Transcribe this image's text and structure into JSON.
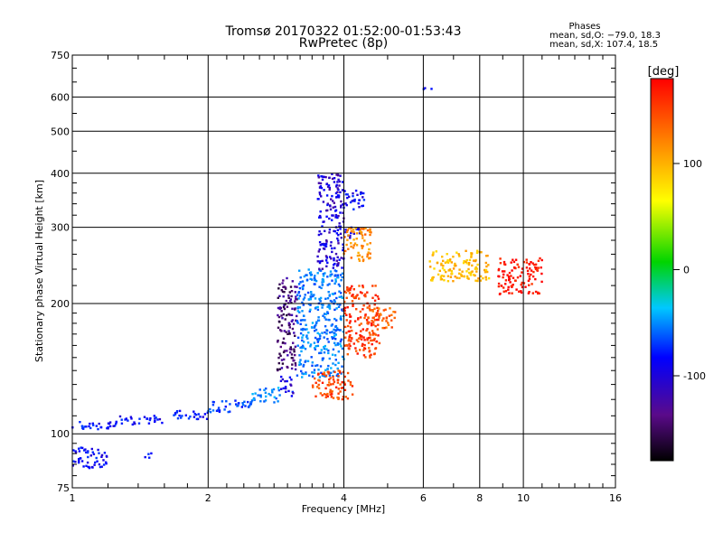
{
  "chart_data": {
    "type": "scatter",
    "title": "Tromsø 20170322 01:52:00-01:53:43",
    "subtitle": "RwPretec (8p)",
    "xlabel": "Frequency [MHz]",
    "ylabel": "Stationary phase Virtual Height [km]",
    "x_scale": "log",
    "y_scale": "log",
    "xlim": [
      1,
      16
    ],
    "ylim": [
      75,
      750
    ],
    "x_ticks": [
      1,
      2,
      4,
      6,
      8,
      10,
      16
    ],
    "y_ticks": [
      75,
      100,
      200,
      300,
      400,
      500,
      600,
      750
    ],
    "grid": true,
    "phase_info": {
      "heading": "Phases",
      "line_o": "mean, sd,O: −79.0, 18.3",
      "line_x": "mean, sd,X: 107.4, 18.5"
    },
    "colorbar": {
      "label": "[deg]",
      "range": [
        -180,
        180
      ],
      "ticks": [
        -100,
        0,
        100
      ],
      "colormap": "rainbow"
    },
    "point_groups": [
      {
        "x": [
          1.0,
          1.25
        ],
        "y": [
          102,
          107
        ],
        "phase": -95
      },
      {
        "x": [
          1.25,
          1.6
        ],
        "y": [
          105,
          110
        ],
        "phase": -100
      },
      {
        "x": [
          1.6,
          2.0
        ],
        "y": [
          108,
          113
        ],
        "phase": -95
      },
      {
        "x": [
          2.0,
          2.5
        ],
        "y": [
          112,
          120
        ],
        "phase": -80
      },
      {
        "x": [
          2.5,
          2.9
        ],
        "y": [
          118,
          128
        ],
        "phase": -55
      },
      {
        "x": [
          2.9,
          3.1
        ],
        "y": [
          122,
          136
        ],
        "phase": -105
      },
      {
        "x": [
          2.85,
          3.15
        ],
        "y": [
          140,
          230
        ],
        "phase": -145
      },
      {
        "x": [
          3.15,
          4.0
        ],
        "y": [
          135,
          240
        ],
        "phase": -60
      },
      {
        "x": [
          3.5,
          4.0
        ],
        "y": [
          240,
          400
        ],
        "phase": -115
      },
      {
        "x": [
          3.85,
          4.45
        ],
        "y": [
          330,
          365
        ],
        "phase": -100
      },
      {
        "x": [
          4.0,
          4.35
        ],
        "y": [
          280,
          300
        ],
        "phase": -110
      },
      {
        "x": [
          4.0,
          4.6
        ],
        "y": [
          250,
          300
        ],
        "phase": 120
      },
      {
        "x": [
          3.4,
          4.2
        ],
        "y": [
          120,
          140
        ],
        "phase": 150
      },
      {
        "x": [
          4.0,
          4.8
        ],
        "y": [
          150,
          220
        ],
        "phase": 155
      },
      {
        "x": [
          4.5,
          5.2
        ],
        "y": [
          175,
          195
        ],
        "phase": 140
      },
      {
        "x": [
          6.2,
          8.4
        ],
        "y": [
          225,
          265
        ],
        "phase": 95
      },
      {
        "x": [
          8.8,
          11.0
        ],
        "y": [
          210,
          255
        ],
        "phase": 175
      },
      {
        "x": [
          6.0,
          6.3
        ],
        "y": [
          615,
          630
        ],
        "phase": -100
      },
      {
        "x": [
          1.0,
          1.2
        ],
        "y": [
          83,
          93
        ],
        "phase": -100
      },
      {
        "x": [
          1.45,
          1.5
        ],
        "y": [
          88,
          92
        ],
        "phase": -90
      }
    ]
  }
}
